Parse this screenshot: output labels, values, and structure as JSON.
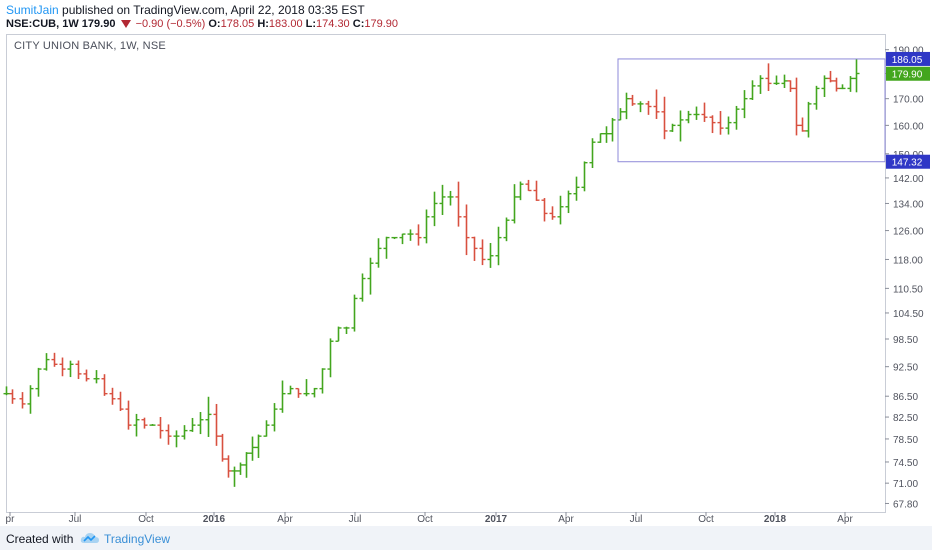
{
  "header": {
    "author": "SumitJain",
    "published_text": "published on TradingView.com, April 22, 2018 03:35 EST",
    "symbol": "NSE:CUB, 1W",
    "last": "179.90",
    "change": "−0.90 (−0.5%)",
    "o_label": "O:",
    "o_value": "178.05",
    "h_label": "H:",
    "h_value": "183.00",
    "l_label": "L:",
    "l_value": "174.30",
    "c_label": "C:",
    "c_value": "179.90",
    "down_color": "#b22833"
  },
  "footer": {
    "created_with": "Created with",
    "brand": "TradingView",
    "logo_icon": "tradingview-cloud-icon"
  },
  "chart_data": {
    "type": "ohlc",
    "title": "CITY UNION BANK, 1W, NSE",
    "x_tick_labels": [
      "pr",
      "Jul",
      "Oct",
      "2016",
      "Apr",
      "Jul",
      "Oct",
      "2017",
      "Apr",
      "Jul",
      "Oct",
      "2018",
      "Apr"
    ],
    "y_tick_labels": [
      "67.80",
      "71.00",
      "74.50",
      "78.50",
      "82.50",
      "86.50",
      "92.50",
      "98.50",
      "104.50",
      "110.50",
      "118.00",
      "126.00",
      "134.00",
      "142.00",
      "150.00",
      "160.00",
      "170.00",
      "180.00",
      "190.00"
    ],
    "y_scale": "log",
    "ylim": [
      66.5,
      196
    ],
    "up_color": "#43a61e",
    "down_color": "#d8503f",
    "range_box": {
      "high": 186.05,
      "low": 147.32,
      "high_label": "186.05",
      "low_label": "147.32"
    },
    "last_price_label": "179.90",
    "series_points": [
      {
        "x": 6,
        "y": 87
      },
      {
        "x": 12,
        "y": 86
      },
      {
        "x": 22,
        "y": 85
      },
      {
        "x": 30,
        "y": 88
      },
      {
        "x": 38,
        "y": 92
      },
      {
        "x": 46,
        "y": 94
      },
      {
        "x": 54,
        "y": 93
      },
      {
        "x": 62,
        "y": 92
      },
      {
        "x": 70,
        "y": 93
      },
      {
        "x": 78,
        "y": 91
      },
      {
        "x": 86,
        "y": 90
      },
      {
        "x": 96,
        "y": 90
      },
      {
        "x": 104,
        "y": 87
      },
      {
        "x": 112,
        "y": 86
      },
      {
        "x": 120,
        "y": 84
      },
      {
        "x": 128,
        "y": 81
      },
      {
        "x": 136,
        "y": 82
      },
      {
        "x": 144,
        "y": 81
      },
      {
        "x": 152,
        "y": 81
      },
      {
        "x": 160,
        "y": 80
      },
      {
        "x": 168,
        "y": 79
      },
      {
        "x": 176,
        "y": 79
      },
      {
        "x": 184,
        "y": 80
      },
      {
        "x": 192,
        "y": 81
      },
      {
        "x": 200,
        "y": 82
      },
      {
        "x": 208,
        "y": 83
      },
      {
        "x": 216,
        "y": 79
      },
      {
        "x": 222,
        "y": 75
      },
      {
        "x": 228,
        "y": 73
      },
      {
        "x": 234,
        "y": 73
      },
      {
        "x": 240,
        "y": 74
      },
      {
        "x": 246,
        "y": 76
      },
      {
        "x": 252,
        "y": 77
      },
      {
        "x": 258,
        "y": 79
      },
      {
        "x": 266,
        "y": 81
      },
      {
        "x": 274,
        "y": 84
      },
      {
        "x": 282,
        "y": 87
      },
      {
        "x": 290,
        "y": 88
      },
      {
        "x": 298,
        "y": 87
      },
      {
        "x": 306,
        "y": 87
      },
      {
        "x": 314,
        "y": 88
      },
      {
        "x": 322,
        "y": 92
      },
      {
        "x": 330,
        "y": 98
      },
      {
        "x": 338,
        "y": 101
      },
      {
        "x": 346,
        "y": 101
      },
      {
        "x": 354,
        "y": 108
      },
      {
        "x": 362,
        "y": 113
      },
      {
        "x": 370,
        "y": 117
      },
      {
        "x": 378,
        "y": 121
      },
      {
        "x": 386,
        "y": 124
      },
      {
        "x": 394,
        "y": 124
      },
      {
        "x": 402,
        "y": 125
      },
      {
        "x": 410,
        "y": 125
      },
      {
        "x": 418,
        "y": 124
      },
      {
        "x": 426,
        "y": 130
      },
      {
        "x": 434,
        "y": 134
      },
      {
        "x": 442,
        "y": 136
      },
      {
        "x": 450,
        "y": 136
      },
      {
        "x": 458,
        "y": 130
      },
      {
        "x": 466,
        "y": 124
      },
      {
        "x": 474,
        "y": 121
      },
      {
        "x": 482,
        "y": 118
      },
      {
        "x": 490,
        "y": 119
      },
      {
        "x": 498,
        "y": 124
      },
      {
        "x": 506,
        "y": 129
      },
      {
        "x": 514,
        "y": 136
      },
      {
        "x": 520,
        "y": 140
      },
      {
        "x": 528,
        "y": 138
      },
      {
        "x": 536,
        "y": 135
      },
      {
        "x": 544,
        "y": 131
      },
      {
        "x": 552,
        "y": 130
      },
      {
        "x": 560,
        "y": 133
      },
      {
        "x": 568,
        "y": 137
      },
      {
        "x": 576,
        "y": 139
      },
      {
        "x": 584,
        "y": 147
      },
      {
        "x": 592,
        "y": 154
      },
      {
        "x": 600,
        "y": 157
      },
      {
        "x": 606,
        "y": 157
      },
      {
        "x": 612,
        "y": 162
      },
      {
        "x": 620,
        "y": 165
      },
      {
        "x": 626,
        "y": 170
      },
      {
        "x": 632,
        "y": 168
      },
      {
        "x": 640,
        "y": 168
      },
      {
        "x": 648,
        "y": 167
      },
      {
        "x": 656,
        "y": 165
      },
      {
        "x": 664,
        "y": 158
      },
      {
        "x": 672,
        "y": 160
      },
      {
        "x": 680,
        "y": 162
      },
      {
        "x": 688,
        "y": 164
      },
      {
        "x": 696,
        "y": 164
      },
      {
        "x": 704,
        "y": 163
      },
      {
        "x": 712,
        "y": 161
      },
      {
        "x": 720,
        "y": 159
      },
      {
        "x": 728,
        "y": 161
      },
      {
        "x": 736,
        "y": 166
      },
      {
        "x": 744,
        "y": 170
      },
      {
        "x": 752,
        "y": 175
      },
      {
        "x": 760,
        "y": 178
      },
      {
        "x": 768,
        "y": 176
      },
      {
        "x": 776,
        "y": 176
      },
      {
        "x": 784,
        "y": 177
      },
      {
        "x": 790,
        "y": 174
      },
      {
        "x": 796,
        "y": 160
      },
      {
        "x": 802,
        "y": 158
      },
      {
        "x": 808,
        "y": 168
      },
      {
        "x": 816,
        "y": 174
      },
      {
        "x": 824,
        "y": 178
      },
      {
        "x": 830,
        "y": 177
      },
      {
        "x": 836,
        "y": 174
      },
      {
        "x": 842,
        "y": 174
      },
      {
        "x": 850,
        "y": 178
      },
      {
        "x": 856,
        "y": 180
      }
    ]
  }
}
